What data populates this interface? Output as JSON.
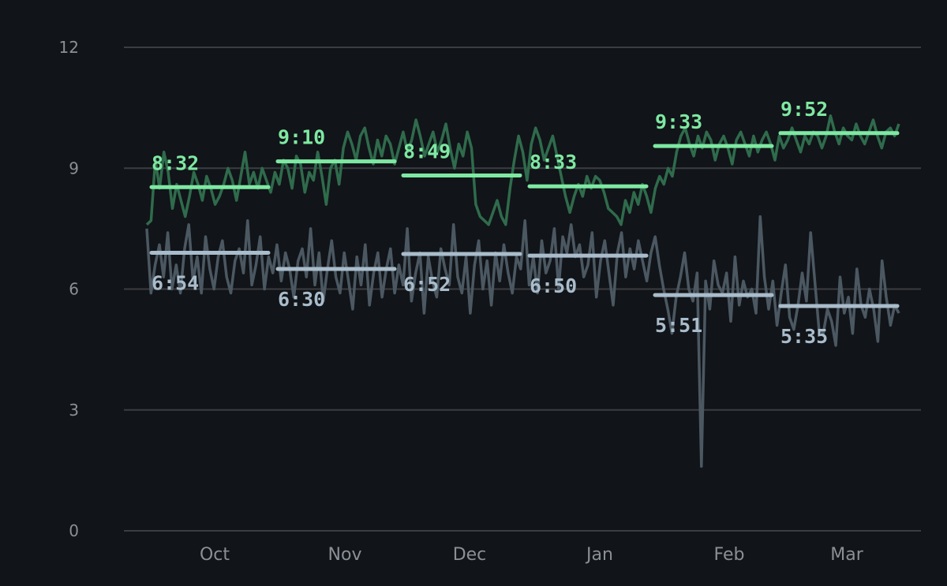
{
  "chart_data": {
    "type": "line",
    "title": "",
    "xlabel": "",
    "ylabel": "",
    "ylim": [
      0,
      12
    ],
    "yticks": [
      "0",
      "3",
      "6",
      "9",
      "12"
    ],
    "grid": true,
    "months": [
      "Oct",
      "Nov",
      "Dec",
      "Jan",
      "Feb",
      "Mar"
    ],
    "colors": {
      "background": "#111418",
      "grid": "#3a3d41",
      "green_avg": "#7ee8a2",
      "green_series": "#2f6b4c",
      "gray_avg": "#a9bccb",
      "gray_series": "#4b5862",
      "tick_text": "#8b9096"
    },
    "monthly_averages": [
      {
        "month": "Oct",
        "green": 8.53,
        "green_label": "8:32",
        "gray": 6.9,
        "gray_label": "6:54"
      },
      {
        "month": "Nov",
        "green": 9.17,
        "green_label": "9:10",
        "gray": 6.5,
        "gray_label": "6:30"
      },
      {
        "month": "Dec",
        "green": 8.82,
        "green_label": "8:49",
        "gray": 6.87,
        "gray_label": "6:52"
      },
      {
        "month": "Jan",
        "green": 8.55,
        "green_label": "8:33",
        "gray": 6.83,
        "gray_label": "6:50"
      },
      {
        "month": "Feb",
        "green": 9.55,
        "green_label": "9:33",
        "gray": 5.85,
        "gray_label": "5:51"
      },
      {
        "month": "Mar",
        "green": 9.87,
        "green_label": "9:52",
        "gray": 5.58,
        "gray_label": "5:35"
      }
    ],
    "series": [
      {
        "name": "green",
        "x_start": 0,
        "x_step": 1,
        "values": [
          7.6,
          7.7,
          9.2,
          8.5,
          9.4,
          8.9,
          8.0,
          8.6,
          8.2,
          7.8,
          8.3,
          8.9,
          8.6,
          8.2,
          8.8,
          8.5,
          8.1,
          8.3,
          8.6,
          9.0,
          8.7,
          8.2,
          8.8,
          9.4,
          8.6,
          8.9,
          8.5,
          9.0,
          8.7,
          8.4,
          8.9,
          8.6,
          9.2,
          9.0,
          8.5,
          9.3,
          9.1,
          8.4,
          8.9,
          8.7,
          9.4,
          8.8,
          8.1,
          9.0,
          9.2,
          8.6,
          9.5,
          9.9,
          9.6,
          9.2,
          9.8,
          10.0,
          9.5,
          9.1,
          9.7,
          9.3,
          9.8,
          9.6,
          9.1,
          9.5,
          9.9,
          9.4,
          9.7,
          10.2,
          9.8,
          9.3,
          9.6,
          9.9,
          9.4,
          9.7,
          10.1,
          9.5,
          9.0,
          9.6,
          9.3,
          9.9,
          9.5,
          8.1,
          7.8,
          7.7,
          7.6,
          7.9,
          8.2,
          7.8,
          7.6,
          8.5,
          9.2,
          9.8,
          9.4,
          8.7,
          9.6,
          10.0,
          9.7,
          9.2,
          9.5,
          9.8,
          9.3,
          8.8,
          8.3,
          7.9,
          8.3,
          8.6,
          8.3,
          8.8,
          8.5,
          8.8,
          8.7,
          8.4,
          8.0,
          7.9,
          7.8,
          7.6,
          8.2,
          7.9,
          8.4,
          8.1,
          8.6,
          8.3,
          7.9,
          8.5,
          8.8,
          8.6,
          9.0,
          8.8,
          9.4,
          9.8,
          10.0,
          9.6,
          9.3,
          9.8,
          9.5,
          9.9,
          9.7,
          9.2,
          9.6,
          9.8,
          9.5,
          9.1,
          9.7,
          9.9,
          9.6,
          9.3,
          9.8,
          9.4,
          9.7,
          9.9,
          9.6,
          9.2,
          9.8,
          9.5,
          9.7,
          10.0,
          9.7,
          9.4,
          9.8,
          9.6,
          9.9,
          9.8,
          9.5,
          9.8,
          10.3,
          9.9,
          9.6,
          10.0,
          9.8,
          9.7,
          10.1,
          9.8,
          9.6,
          9.9,
          10.2,
          9.8,
          9.5,
          9.9,
          10.0,
          9.8,
          10.1
        ]
      },
      {
        "name": "gray",
        "x_start": 0,
        "x_step": 1,
        "values": [
          7.5,
          5.9,
          6.6,
          7.1,
          6.3,
          7.4,
          6.0,
          6.6,
          5.9,
          7.0,
          7.6,
          6.2,
          6.8,
          5.9,
          7.3,
          6.5,
          6.0,
          6.8,
          7.2,
          6.3,
          5.9,
          6.7,
          7.0,
          6.4,
          7.7,
          6.1,
          6.6,
          7.3,
          6.0,
          6.8,
          6.4,
          7.1,
          6.2,
          6.9,
          6.5,
          5.8,
          6.7,
          7.0,
          6.3,
          7.5,
          6.1,
          6.9,
          5.7,
          6.5,
          7.2,
          6.3,
          5.9,
          6.9,
          6.2,
          5.5,
          6.8,
          6.1,
          7.1,
          5.6,
          6.4,
          6.9,
          5.8,
          6.5,
          7.0,
          5.9,
          6.6,
          6.1,
          7.5,
          5.7,
          6.4,
          6.9,
          5.4,
          6.8,
          6.2,
          5.8,
          7.0,
          6.5,
          6.1,
          7.6,
          6.3,
          5.9,
          6.8,
          5.4,
          6.6,
          7.2,
          6.0,
          6.7,
          5.6,
          6.9,
          6.2,
          7.1,
          6.4,
          5.9,
          6.8,
          6.5,
          7.7,
          6.1,
          6.8,
          5.9,
          7.2,
          6.4,
          6.7,
          7.5,
          6.0,
          7.3,
          6.9,
          7.6,
          6.8,
          7.1,
          6.3,
          6.6,
          7.4,
          5.8,
          6.7,
          7.2,
          6.4,
          5.6,
          6.9,
          7.4,
          6.3,
          7.0,
          6.5,
          7.2,
          6.7,
          6.2,
          6.9,
          7.3,
          6.6,
          6.0,
          5.5,
          4.9,
          5.8,
          6.3,
          6.9,
          6.0,
          5.7,
          6.4,
          1.6,
          6.2,
          5.5,
          6.7,
          6.1,
          5.9,
          6.4,
          5.2,
          6.8,
          5.6,
          6.2,
          5.8,
          6.0,
          5.4,
          7.8,
          6.3,
          5.5,
          6.2,
          5.1,
          5.9,
          6.6,
          5.3,
          5.0,
          5.6,
          6.4,
          5.7,
          7.4,
          6.2,
          5.0,
          4.9,
          5.5,
          5.2,
          4.6,
          6.3,
          5.4,
          5.8,
          4.9,
          6.5,
          5.6,
          5.3,
          6.0,
          5.5,
          4.7,
          6.7,
          5.8,
          5.1,
          5.6,
          5.4
        ]
      }
    ]
  }
}
